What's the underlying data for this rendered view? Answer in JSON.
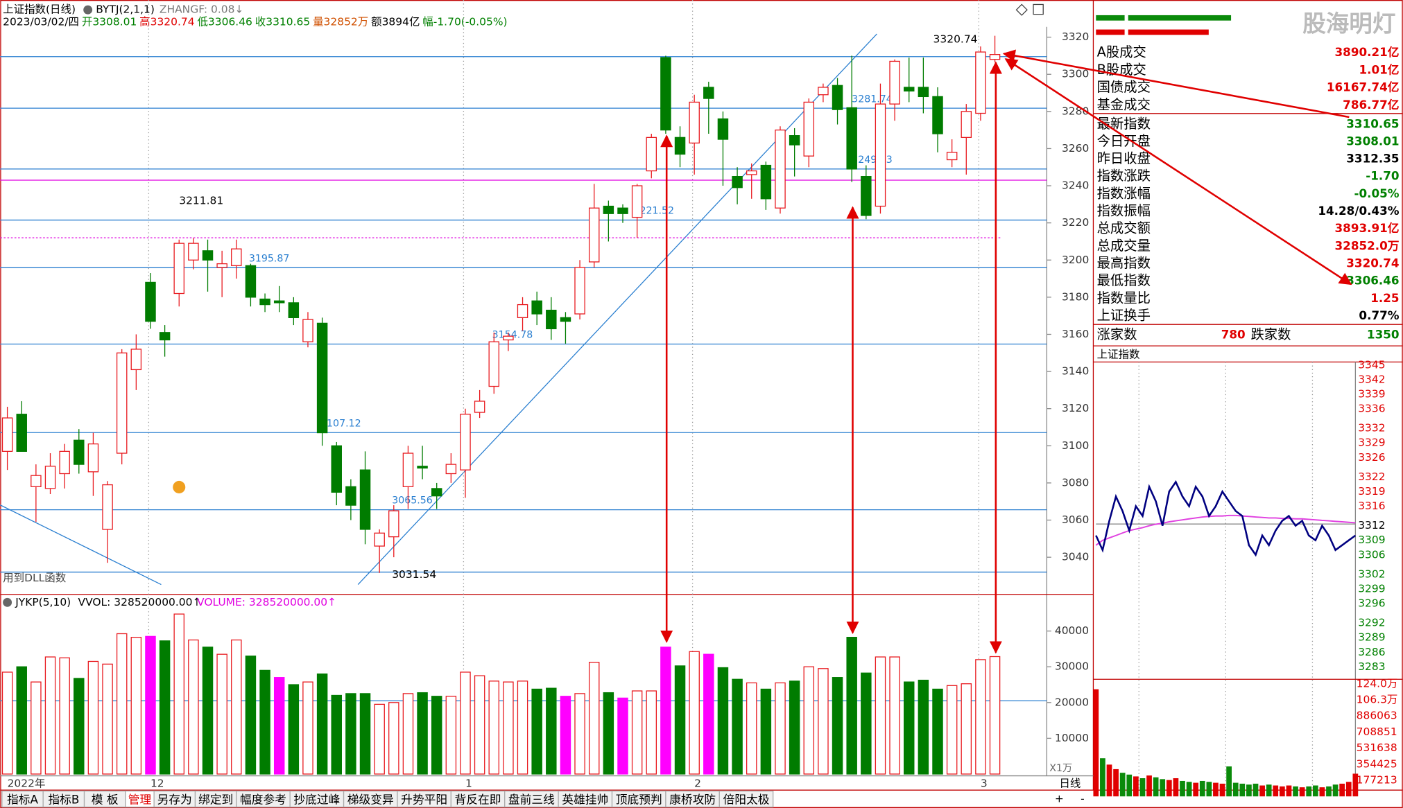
{
  "chart_data": {
    "type": "candlestick",
    "title": "上证指数(日线)",
    "indicator": "BYTJ(2,1,1)",
    "indicator_value": "ZHANGF: 0.08↓",
    "date_label": "2023/03/02/四",
    "header_info": [
      {
        "text": "开3308.01",
        "color": "#008000"
      },
      {
        "text": "高3320.74",
        "color": "#e00000"
      },
      {
        "text": "低3306.46",
        "color": "#008000"
      },
      {
        "text": "收3310.65",
        "color": "#008000"
      },
      {
        "text": "量32852万",
        "color": "#d05000"
      },
      {
        "text": "额3894亿",
        "color": "#000000"
      },
      {
        "text": "幅-1.70(-0.05%)",
        "color": "#008000"
      }
    ],
    "categories": [
      "2022年",
      null,
      null,
      null,
      null,
      null,
      null,
      null,
      null,
      null,
      "12",
      null,
      null,
      null,
      null,
      null,
      null,
      null,
      null,
      null,
      null,
      null,
      null,
      null,
      null,
      null,
      null,
      null,
      null,
      null,
      null,
      null,
      "1",
      null,
      null,
      null,
      null,
      null,
      null,
      null,
      null,
      null,
      null,
      null,
      null,
      null,
      null,
      null,
      "2",
      null,
      null,
      null,
      null,
      null,
      null,
      null,
      null,
      null,
      null,
      null,
      null,
      null,
      null,
      null,
      null,
      null,
      null,
      null,
      "3",
      null
    ],
    "open": [
      3097,
      3117,
      3078,
      3077,
      3085,
      3103,
      3086,
      3055,
      3096,
      3141,
      3188,
      3161,
      3182,
      3200,
      3205,
      3196,
      3197,
      3197,
      3179,
      3178,
      3177,
      3156,
      3166,
      3100,
      3078,
      3087,
      3046,
      3051,
      3078,
      3089,
      3077,
      3085,
      3087,
      3118,
      3132,
      3157,
      3169,
      3178,
      3173,
      3169,
      3171,
      3199,
      3229,
      3228,
      3223,
      3248,
      3309,
      3266,
      3263,
      3293,
      3276,
      3245,
      3246,
      3251,
      3228,
      3267,
      3256,
      3289,
      3294,
      3282,
      3245,
      3229,
      3284,
      3293,
      3293,
      3288,
      3254,
      3266,
      3279,
      3308.01
    ],
    "high": [
      3121,
      3124,
      3090,
      3096,
      3101,
      3109,
      3107,
      3081,
      3152,
      3160,
      3193,
      3165,
      3211,
      3211.81,
      3211,
      3205,
      3211,
      3198,
      3182,
      3186,
      3180,
      3172,
      3169,
      3102,
      3082,
      3097,
      3055,
      3068,
      3100,
      3100,
      3080,
      3096,
      3120,
      3130,
      3161,
      3161,
      3180,
      3183,
      3180,
      3172,
      3200,
      3241,
      3232,
      3230,
      3241,
      3268,
      3310,
      3272,
      3289,
      3296,
      3280,
      3250,
      3252,
      3253,
      3272,
      3271,
      3287,
      3295,
      3298,
      3310,
      3251,
      3295,
      3308,
      3309,
      3309,
      3293,
      3265,
      3284,
      3315,
      3320.74
    ],
    "low": [
      3087,
      3097,
      3059,
      3074,
      3077,
      3085,
      3073,
      3037,
      3090,
      3130,
      3163,
      3148,
      3175,
      3195,
      3183,
      3180,
      3190,
      3175,
      3172,
      3172,
      3165,
      3153,
      3100,
      3068,
      3060,
      3047,
      3031.54,
      3040,
      3066,
      3082,
      3066,
      3080,
      3072,
      3115,
      3128,
      3151,
      3162,
      3165,
      3157,
      3155,
      3168,
      3196,
      3210,
      3220,
      3212,
      3244,
      3268,
      3250,
      3246,
      3268,
      3240,
      3230,
      3233,
      3227,
      3225,
      3245,
      3250,
      3285,
      3273,
      3242,
      3222,
      3225,
      3275,
      3285,
      3279,
      3258,
      3250,
      3246,
      3275,
      3306.46
    ],
    "close": [
      3115,
      3097,
      3084,
      3089,
      3097,
      3090,
      3101,
      3079,
      3150,
      3152,
      3167,
      3157,
      3209,
      3209,
      3200,
      3198,
      3206,
      3180,
      3176,
      3177,
      3169,
      3168,
      3107,
      3075,
      3068,
      3055,
      3053,
      3065,
      3096,
      3088,
      3073,
      3090,
      3117,
      3124,
      3156,
      3159,
      3176,
      3171,
      3163,
      3167,
      3196,
      3228,
      3225,
      3225,
      3240,
      3266,
      3270,
      3257,
      3285,
      3287,
      3265,
      3239,
      3248,
      3233,
      3270,
      3262,
      3285,
      3293,
      3281,
      3249,
      3224,
      3284,
      3307,
      3291,
      3288,
      3268,
      3258,
      3280,
      3312,
      3310.65
    ],
    "up_color": "#e8191e",
    "down_color": "#007c00",
    "ylim": [
      3020,
      3340
    ],
    "yticks": [
      3040,
      3060,
      3080,
      3100,
      3120,
      3140,
      3160,
      3180,
      3200,
      3220,
      3240,
      3260,
      3280,
      3300,
      3320
    ],
    "levels": [
      3281.74,
      3249.03,
      3221.52,
      3195.87,
      3154.78,
      3107.12,
      3065.56
    ],
    "level_color": "#2a7fd0",
    "unmarked_levels": [
      3309.5,
      3032
    ],
    "pink_levels": [
      3243,
      3212
    ],
    "note": "用到DLL函数",
    "period": "日线",
    "volume_panel": {
      "title": "JYKP(5,10)",
      "vvol": "VVOL: 328520000.00↑",
      "volume_label": "VOLUME: 328520000.00↑",
      "values": [
        28500,
        30000,
        25750,
        32750,
        32500,
        26750,
        31500,
        30750,
        39250,
        38250,
        38500,
        37250,
        44750,
        37500,
        35500,
        33500,
        37500,
        33000,
        29000,
        27000,
        25000,
        25750,
        28000,
        22000,
        22500,
        22500,
        19500,
        20000,
        22500,
        22750,
        21750,
        21750,
        28500,
        27500,
        26000,
        25750,
        26000,
        23750,
        24000,
        21750,
        22500,
        31250,
        22750,
        21250,
        23250,
        23250,
        35500,
        30250,
        34250,
        33500,
        29750,
        26500,
        25500,
        23750,
        25500,
        26000,
        30000,
        29500,
        27000,
        38250,
        28250,
        32750,
        32750,
        25750,
        26250,
        23750,
        24750,
        25250,
        32000,
        32852
      ],
      "highlighted": [
        10,
        19,
        39,
        43,
        46,
        49
      ],
      "highlight_color": "#ff00ff",
      "ylim": [
        0,
        50000
      ],
      "yticks": [
        10000,
        20000,
        30000,
        40000
      ],
      "unit": "X1万",
      "level": 20500
    }
  },
  "side_panel": {
    "watermark": "股海明灯",
    "stats": [
      {
        "label": "A股成交",
        "value": "3890.21亿",
        "color": "#e00000"
      },
      {
        "label": "B股成交",
        "value": "1.01亿",
        "color": "#e00000"
      },
      {
        "label": "国债成交",
        "value": "16167.74亿",
        "color": "#e00000"
      },
      {
        "label": "基金成交",
        "value": "786.77亿",
        "color": "#e00000"
      },
      {
        "label": "最新指数",
        "value": "3310.65",
        "color": "#008000"
      },
      {
        "label": "今日开盘",
        "value": "3308.01",
        "color": "#008000"
      },
      {
        "label": "昨日收盘",
        "value": "3312.35",
        "color": "#000000"
      },
      {
        "label": "指数涨跌",
        "value": "-1.70",
        "color": "#008000"
      },
      {
        "label": "指数涨幅",
        "value": "-0.05%",
        "color": "#008000"
      },
      {
        "label": "指数振幅",
        "value": "14.28/0.43%",
        "color": "#000000"
      },
      {
        "label": "总成交额",
        "value": "3893.91亿",
        "color": "#e00000"
      },
      {
        "label": "总成交量",
        "value": "32852.0万",
        "color": "#e00000"
      },
      {
        "label": "最高指数",
        "value": "3320.74",
        "color": "#e00000"
      },
      {
        "label": "最低指数",
        "value": "3306.46",
        "color": "#008000"
      },
      {
        "label": "指数量比",
        "value": "1.25",
        "color": "#e00000"
      },
      {
        "label": "上证换手",
        "value": "0.77%",
        "color": "#000000"
      }
    ],
    "breadth": {
      "up_label": "涨家数",
      "up": "780",
      "down_label": "跌家数",
      "down": "1350"
    }
  },
  "intraday_chart": {
    "type": "line",
    "title": "上证指数",
    "price": [
      3310,
      3307,
      3313,
      3318,
      3315,
      3311,
      3316,
      3314,
      3320,
      3317,
      3312,
      3319,
      3321,
      3318,
      3316,
      3320,
      3318,
      3314,
      3316,
      3319,
      3317,
      3315,
      3314,
      3308,
      3306,
      3310,
      3308,
      3311,
      3313,
      3314,
      3312,
      3313,
      3310,
      3309,
      3312,
      3310,
      3307,
      3308,
      3309,
      3310
    ],
    "average": [
      3308,
      3309,
      3309.5,
      3310,
      3310.5,
      3311,
      3311.3,
      3311.6,
      3312,
      3312.3,
      3312.5,
      3312.8,
      3313,
      3313.2,
      3313.4,
      3313.6,
      3313.8,
      3313.9,
      3314,
      3314,
      3314.1,
      3314.1,
      3314,
      3313.9,
      3313.8,
      3313.7,
      3313.6,
      3313.6,
      3313.5,
      3313.5,
      3313.4,
      3313.4,
      3313.3,
      3313.2,
      3313.1,
      3313,
      3312.9,
      3312.8,
      3312.7,
      3312.6
    ],
    "price_color": "#000080",
    "average_color": "#e040e0",
    "prev_close": 3312.35,
    "ylim": [
      3281,
      3346
    ],
    "yticks": [
      3345,
      3342,
      3339,
      3336,
      3332,
      3329,
      3326,
      3322,
      3319,
      3316,
      3312,
      3309,
      3306,
      3302,
      3299,
      3296,
      3292,
      3289,
      3286,
      3283
    ],
    "volume": [
      1180000,
      420000,
      350000,
      300000,
      260000,
      240000,
      220000,
      200000,
      230000,
      210000,
      190000,
      180000,
      200000,
      170000,
      160000,
      150000,
      170000,
      160000,
      150000,
      140000,
      330000,
      150000,
      140000,
      130000,
      140000,
      120000,
      130000,
      120000,
      110000,
      120000,
      110000,
      100000,
      110000,
      120000,
      100000,
      110000,
      130000,
      140000,
      160000,
      250000
    ],
    "volume_ylim": [
      0,
      1260000
    ],
    "volume_ticks": [
      {
        "value": 1240000,
        "label": "124.0万"
      },
      {
        "value": 1063000,
        "label": "106.3万"
      },
      886063,
      708851,
      531638,
      354425,
      177213
    ]
  },
  "toolbar": {
    "items": [
      "指标A",
      "指标B",
      "模 板",
      "管理",
      "另存为",
      "绑定到",
      "幅度参考",
      "抄底过峰",
      "梯级变异",
      "升势平阳",
      "背反在即",
      "盘前三线",
      "英雄挂帅",
      "顶底预判",
      "康桥攻防",
      "倍阳太极"
    ],
    "active": 3
  }
}
